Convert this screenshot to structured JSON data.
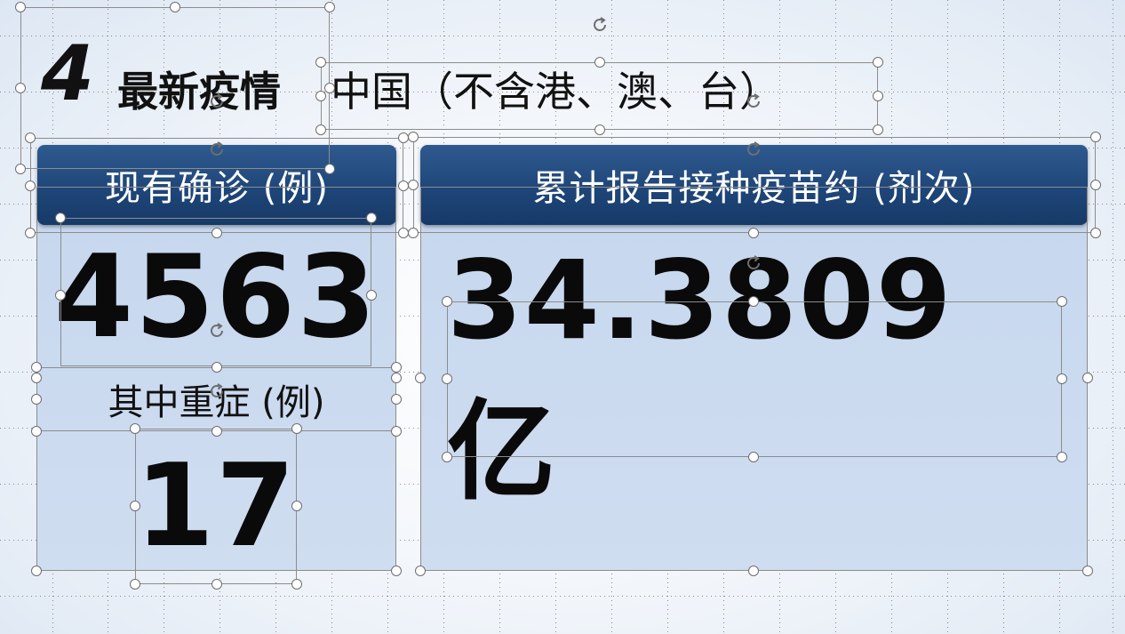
{
  "slide": {
    "number": "4",
    "title": "最新疫情",
    "subtitle": "中国（不含港、澳、台）"
  },
  "left_panel": {
    "header": "现有确诊 (例)",
    "value": "4563",
    "sub_label": "其中重症 (例)",
    "sub_value": "17"
  },
  "right_panel": {
    "header": "累计报告接种疫苗约 (剂次)",
    "value": "34.3809亿"
  },
  "colors": {
    "header_bg": "#1f4679",
    "panel_bg": "#c8d9ef",
    "text": "#0a0a0a"
  },
  "icons": {
    "handle": "selection-handle-icon",
    "rotate": "rotate-handle-icon"
  }
}
